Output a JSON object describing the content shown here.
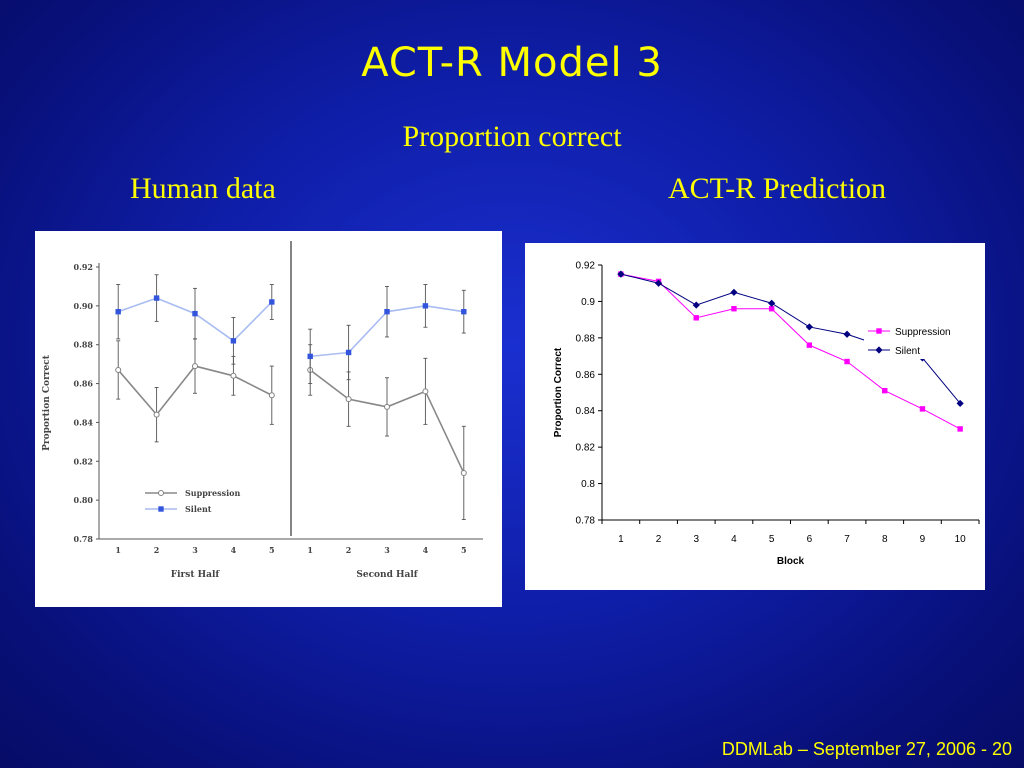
{
  "slide": {
    "title": "ACT-R Model 3",
    "subtitle": "Proportion correct",
    "left_label": "Human data",
    "right_label": "ACT-R Prediction",
    "footer": "DDMLab – September 27, 2006 - 20"
  },
  "colors": {
    "background": "#0f1ea8",
    "title_text": "#ffff00",
    "human_suppression": "#808080",
    "human_silent": "#8fa6f0",
    "model_suppression": "#ff00ff",
    "model_silent": "#000080"
  },
  "chart_data": [
    {
      "type": "line",
      "ylabel": "Proportion Correct",
      "ylim": [
        0.78,
        0.92
      ],
      "yticks": [
        "0.78",
        "0.80",
        "0.82",
        "0.84",
        "0.86",
        "0.88",
        "0.90",
        "0.92"
      ],
      "categories": [
        "1",
        "2",
        "3",
        "4",
        "5",
        "1",
        "2",
        "3",
        "4",
        "5"
      ],
      "group_labels": [
        "First Half",
        "Second Half"
      ],
      "divider_after_index": 4,
      "grid": false,
      "legend_position": "lower-left",
      "series": [
        {
          "name": "Suppression",
          "marker": "circle",
          "color": "#808080",
          "values": [
            0.867,
            0.844,
            0.869,
            0.864,
            0.854,
            0.867,
            0.852,
            0.848,
            0.856,
            0.814
          ],
          "errors": [
            0.015,
            0.014,
            0.014,
            0.01,
            0.015,
            0.013,
            0.014,
            0.015,
            0.017,
            0.024
          ]
        },
        {
          "name": "Silent",
          "marker": "square",
          "color": "#3355dd",
          "values": [
            0.897,
            0.904,
            0.896,
            0.882,
            0.902,
            0.874,
            0.876,
            0.897,
            0.9,
            0.897
          ],
          "errors": [
            0.014,
            0.012,
            0.013,
            0.012,
            0.009,
            0.014,
            0.014,
            0.013,
            0.011,
            0.011
          ]
        }
      ]
    },
    {
      "type": "line",
      "xlabel": "Block",
      "ylabel": "Proportion Correct",
      "ylim": [
        0.78,
        0.92
      ],
      "yticks": [
        "0.78",
        "0.8",
        "0.82",
        "0.84",
        "0.86",
        "0.88",
        "0.9",
        "0.92"
      ],
      "categories": [
        "1",
        "2",
        "3",
        "4",
        "5",
        "6",
        "7",
        "8",
        "9",
        "10"
      ],
      "grid": false,
      "legend_position": "right",
      "series": [
        {
          "name": "Suppression",
          "marker": "square",
          "color": "#ff00ff",
          "values": [
            0.915,
            0.911,
            0.891,
            0.896,
            0.896,
            0.876,
            0.867,
            0.851,
            0.841,
            0.83
          ]
        },
        {
          "name": "Silent",
          "marker": "diamond",
          "color": "#000080",
          "values": [
            0.915,
            0.91,
            0.898,
            0.905,
            0.899,
            0.886,
            0.882,
            0.875,
            0.869,
            0.844
          ]
        }
      ]
    }
  ]
}
